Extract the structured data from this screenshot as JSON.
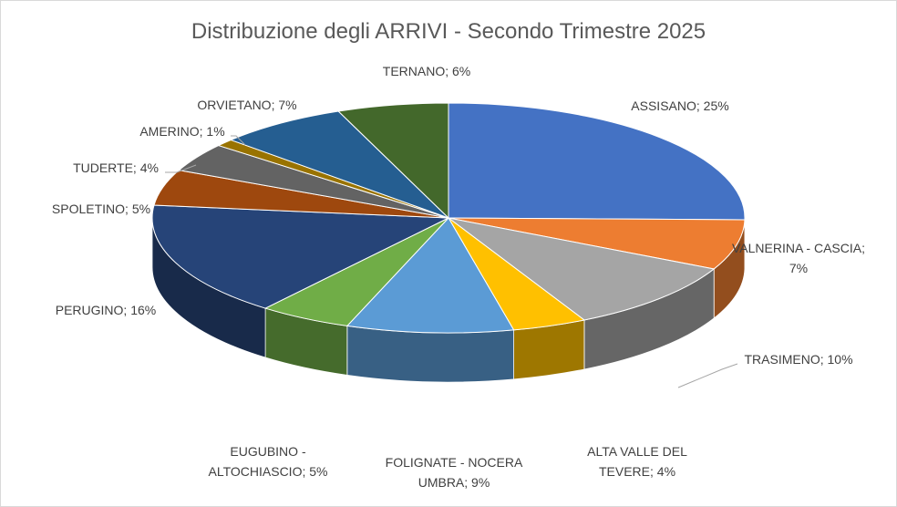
{
  "chart_data": {
    "type": "pie",
    "title": "Distribuzione degli ARRIVI - Secondo Trimestre 2025",
    "slices": [
      {
        "label": "ASSISANO",
        "value": 25,
        "color": "#4472C4",
        "text_lines": [
          "ASSISANO; 25%"
        ]
      },
      {
        "label": "VALNERINA - CASCIA",
        "value": 7,
        "color": "#ED7D31",
        "text_lines": [
          "VALNERINA - CASCIA;",
          "7%"
        ]
      },
      {
        "label": "TRASIMENO",
        "value": 10,
        "color": "#A5A5A5",
        "text_lines": [
          "TRASIMENO; 10%"
        ]
      },
      {
        "label": "ALTA VALLE DEL TEVERE",
        "value": 4,
        "color": "#FFC000",
        "text_lines": [
          "ALTA VALLE DEL",
          "TEVERE; 4%"
        ]
      },
      {
        "label": "FOLIGNATE - NOCERA UMBRA",
        "value": 9,
        "color": "#5B9BD5",
        "text_lines": [
          "FOLIGNATE - NOCERA",
          "UMBRA; 9%"
        ]
      },
      {
        "label": "EUGUBINO - ALTOCHIASCIO",
        "value": 5,
        "color": "#70AD47",
        "text_lines": [
          "EUGUBINO -",
          "ALTOCHIASCIO; 5%"
        ]
      },
      {
        "label": "PERUGINO",
        "value": 16,
        "color": "#264478",
        "text_lines": [
          "PERUGINO; 16%"
        ]
      },
      {
        "label": "SPOLETINO",
        "value": 5,
        "color": "#9E480E",
        "text_lines": [
          "SPOLETINO; 5%"
        ]
      },
      {
        "label": "TUDERTE",
        "value": 4,
        "color": "#636363",
        "text_lines": [
          "TUDERTE; 4%"
        ]
      },
      {
        "label": "AMERINO",
        "value": 1,
        "color": "#997300",
        "text_lines": [
          "AMERINO; 1%"
        ]
      },
      {
        "label": "ORVIETANO",
        "value": 7,
        "color": "#255E91",
        "text_lines": [
          "ORVIETANO; 7%"
        ]
      },
      {
        "label": "TERNANO",
        "value": 6,
        "color": "#43682B",
        "text_lines": [
          "TERNANO; 6%"
        ]
      }
    ]
  }
}
